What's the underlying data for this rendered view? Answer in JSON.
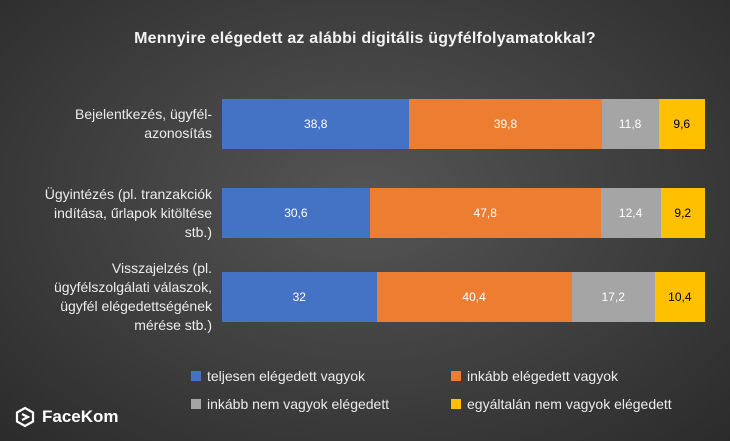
{
  "chart_data": {
    "type": "bar",
    "orientation": "horizontal",
    "stacked": true,
    "title": "Mennyire elégedett az alábbi digitális ügyfélfolyamatokkal?",
    "categories": [
      [
        "Bejelentkezés, ügyfél-",
        "azonosítás"
      ],
      [
        "Ügyintézés (pl. tranzakciók",
        "indítása, űrlapok kitöltése",
        "stb.)"
      ],
      [
        "Visszajelzés (pl.",
        "ügyfélszolgálati válaszok,",
        "ügyfél elégedettségének",
        "mérése stb.)"
      ]
    ],
    "series": [
      {
        "name": "teljesen elégedett vagyok",
        "color": "#4472c4",
        "text_color": "#ffffff",
        "values": [
          38.8,
          30.6,
          32
        ],
        "labels": [
          "38,8",
          "30,6",
          "32"
        ]
      },
      {
        "name": "inkább elégedett vagyok",
        "color": "#ed7d31",
        "text_color": "#ffffff",
        "values": [
          39.8,
          47.8,
          40.4
        ],
        "labels": [
          "39,8",
          "47,8",
          "40,4"
        ]
      },
      {
        "name": "inkább nem vagyok elégedett",
        "color": "#a5a5a5",
        "text_color": "#ffffff",
        "values": [
          11.8,
          12.4,
          17.2
        ],
        "labels": [
          "11,8",
          "12,4",
          "17,2"
        ]
      },
      {
        "name": "egyáltalán nem vagyok elégedett",
        "color": "#ffc000",
        "text_color": "#000000",
        "values": [
          9.6,
          9.2,
          10.4
        ],
        "labels": [
          "9,6",
          "9,2",
          "10,4"
        ]
      }
    ],
    "xlim": [
      0,
      100
    ],
    "legend_position": "bottom",
    "grid": false
  },
  "brand": {
    "name": "FaceKom",
    "color": "#ffffff"
  }
}
